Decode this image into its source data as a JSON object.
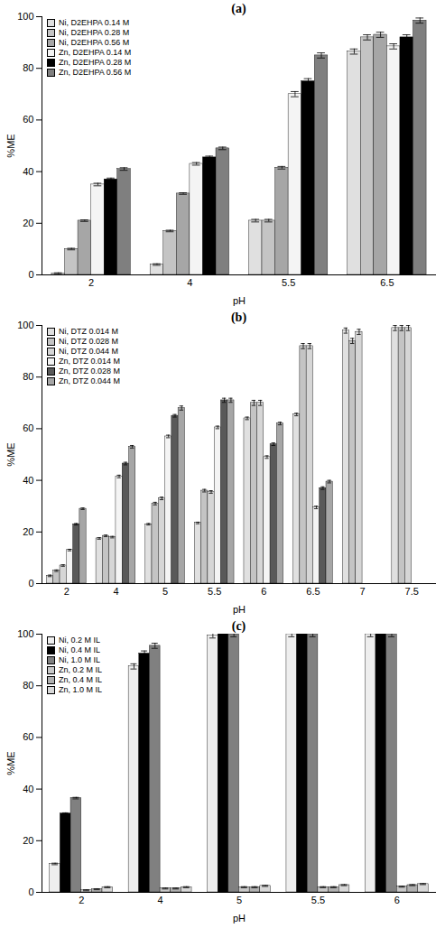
{
  "chart_data": [
    {
      "type": "bar",
      "title": "(a)",
      "x_label": "pH",
      "y_label": "%ME",
      "categories": [
        "2",
        "4",
        "5.5",
        "6.5"
      ],
      "ylim": [
        0,
        100
      ],
      "yticks": [
        0,
        20,
        40,
        60,
        80,
        100
      ],
      "grid": false,
      "legend": "top-left",
      "series": [
        {
          "name": "Ni, D2EHPA 0.14 M",
          "color": "#e0e0e0",
          "values": [
            0.5,
            4,
            21,
            86.5
          ],
          "errors": [
            0.3,
            0.3,
            0.5,
            1
          ]
        },
        {
          "name": "Ni, D2EHPA 0.28 M",
          "color": "#c4c4c4",
          "values": [
            10,
            17,
            21,
            92
          ],
          "errors": [
            0.3,
            0.3,
            0.5,
            1
          ]
        },
        {
          "name": "Ni, D2EHPA 0.56 M",
          "color": "#a6a6a6",
          "values": [
            21,
            31.5,
            41.5,
            93
          ],
          "errors": [
            0.3,
            0.3,
            0.5,
            1
          ]
        },
        {
          "name": "Zn, D2EHPA 0.14 M",
          "color": "#f4f4f4",
          "values": [
            35,
            43,
            70,
            88.5
          ],
          "errors": [
            0.5,
            0.5,
            1,
            1
          ]
        },
        {
          "name": "Zn, D2EHPA 0.28 M",
          "color": "#000000",
          "values": [
            37,
            45.5,
            75,
            92
          ],
          "errors": [
            0.5,
            0.5,
            1,
            1
          ]
        },
        {
          "name": "Zn, D2EHPA 0.56 M",
          "color": "#7f7f7f",
          "values": [
            41,
            49,
            85,
            98.5
          ],
          "errors": [
            0.5,
            0.5,
            1,
            1
          ]
        }
      ]
    },
    {
      "type": "bar",
      "title": "(b)",
      "x_label": "pH",
      "y_label": "%ME",
      "categories": [
        "2",
        "4",
        "5",
        "5.5",
        "6",
        "6.5",
        "7",
        "7.5"
      ],
      "ylim": [
        0,
        100
      ],
      "yticks": [
        0,
        20,
        40,
        60,
        80,
        100
      ],
      "grid": false,
      "legend": "top-left",
      "series": [
        {
          "name": "Ni, DTZ 0.014 M",
          "color": "#e0e0e0",
          "values": [
            3,
            17.5,
            23,
            23.5,
            64,
            65.5,
            98,
            99
          ],
          "errors": [
            0.3,
            0.3,
            0.3,
            0.3,
            0.5,
            0.5,
            1,
            1
          ]
        },
        {
          "name": "Ni, DTZ 0.028 M",
          "color": "#c4c4c4",
          "values": [
            5,
            18.5,
            31,
            36,
            70,
            92,
            94,
            99
          ],
          "errors": [
            0.3,
            0.3,
            0.5,
            0.5,
            1,
            1,
            1,
            1
          ]
        },
        {
          "name": "Ni, DTZ 0.044 M",
          "color": "#d6d6d6",
          "values": [
            7,
            18,
            33,
            35.5,
            70,
            92,
            97.5,
            99
          ],
          "errors": [
            0.3,
            0.3,
            0.5,
            0.5,
            1,
            1,
            1,
            1
          ]
        },
        {
          "name": "Zn, DTZ 0.014 M",
          "color": "#f4f4f4",
          "values": [
            13,
            41.5,
            57,
            60.5,
            49,
            29.5,
            null,
            null
          ],
          "errors": [
            0.3,
            0.5,
            0.5,
            0.5,
            0.5,
            0.5,
            null,
            null
          ]
        },
        {
          "name": "Zn, DTZ 0.028 M",
          "color": "#595959",
          "values": [
            23,
            46.5,
            65,
            71,
            54,
            37,
            null,
            null
          ],
          "errors": [
            0.3,
            0.5,
            0.5,
            0.8,
            0.5,
            0.5,
            null,
            null
          ]
        },
        {
          "name": "Zn, DTZ 0.044 M",
          "color": "#a6a6a6",
          "values": [
            29,
            53,
            68,
            71,
            62,
            39.5,
            null,
            null
          ],
          "errors": [
            0.3,
            0.5,
            0.8,
            0.8,
            0.5,
            0.5,
            null,
            null
          ]
        }
      ]
    },
    {
      "type": "bar",
      "title": "(c)",
      "x_label": "pH",
      "y_label": "%ME",
      "categories": [
        "2",
        "4",
        "5",
        "5.5",
        "6"
      ],
      "ylim": [
        0,
        100
      ],
      "yticks": [
        0,
        20,
        40,
        60,
        80,
        100
      ],
      "grid": false,
      "legend": "top-left",
      "series": [
        {
          "name": "Ni, 0.2 M IL",
          "color": "#eeeeee",
          "values": [
            11,
            87.5,
            99.5,
            100,
            100
          ],
          "errors": [
            0.3,
            1,
            1,
            1,
            1
          ]
        },
        {
          "name": "Ni, 0.4 M IL",
          "color": "#000000",
          "values": [
            30.5,
            92.5,
            100,
            100,
            100
          ],
          "errors": [
            0.3,
            1,
            1,
            1,
            1
          ]
        },
        {
          "name": "Ni, 1.0 M IL",
          "color": "#808080",
          "values": [
            36.5,
            95.5,
            100,
            100,
            100
          ],
          "errors": [
            0.3,
            1,
            1,
            1,
            1
          ]
        },
        {
          "name": "Zn, 0.2 M IL",
          "color": "#c8c8c8",
          "values": [
            0.8,
            1.5,
            2,
            2,
            2.2
          ],
          "errors": [
            0.2,
            0.2,
            0.2,
            0.2,
            0.2
          ]
        },
        {
          "name": "Zn, 0.4 M IL",
          "color": "#b0b0b0",
          "values": [
            1.2,
            1.5,
            2,
            2,
            2.8
          ],
          "errors": [
            0.2,
            0.2,
            0.2,
            0.2,
            0.2
          ]
        },
        {
          "name": "Zn, 1.0 M IL",
          "color": "#d8d8d8",
          "values": [
            2,
            2,
            2.5,
            2.8,
            3.2
          ],
          "errors": [
            0.2,
            0.2,
            0.2,
            0.2,
            0.2
          ]
        }
      ]
    }
  ]
}
